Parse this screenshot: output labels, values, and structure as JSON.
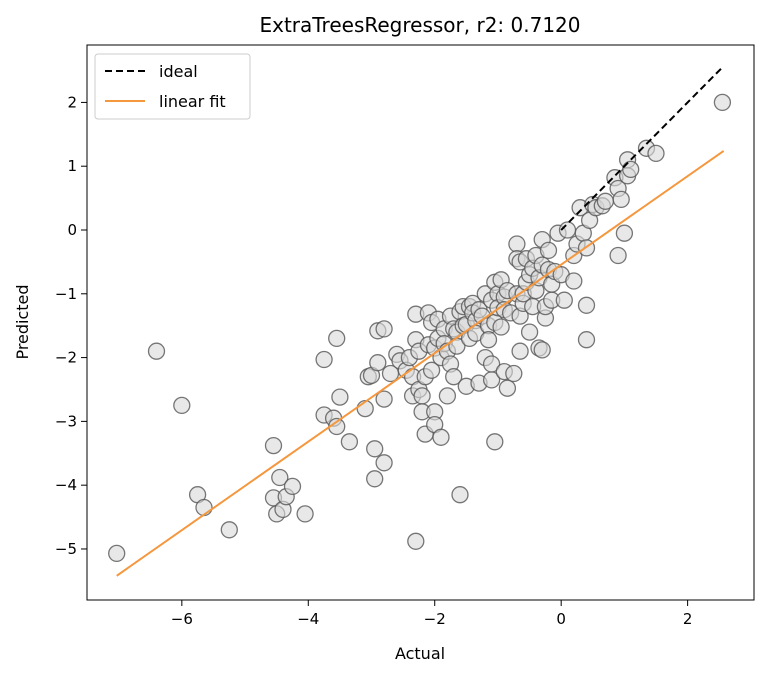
{
  "chart_data": {
    "type": "scatter",
    "title": "ExtraTreesRegressor, r2: 0.7120",
    "xlabel": "Actual",
    "ylabel": "Predicted",
    "xlim": [
      -7.5,
      3.05
    ],
    "ylim": [
      -5.8,
      2.9
    ],
    "xticks": [
      -6,
      -4,
      -2,
      0,
      2
    ],
    "yticks": [
      -5,
      -4,
      -3,
      -2,
      -1,
      0,
      1,
      2
    ],
    "grid": false,
    "legend_position": "top-left",
    "colors": {
      "points_fill": "#d9d9d9",
      "points_stroke": "#555555",
      "ideal": "#000000",
      "fit": "#f5973d"
    },
    "series": [
      {
        "name": "ideal",
        "kind": "line",
        "style": "dashed",
        "x": [
          0.0,
          2.55
        ],
        "y": [
          0.0,
          2.55
        ]
      },
      {
        "name": "linear fit",
        "kind": "line",
        "style": "solid",
        "x": [
          -7.03,
          2.57
        ],
        "y": [
          -5.42,
          1.24
        ]
      },
      {
        "kind": "scatter",
        "points": [
          [
            -7.03,
            -5.07
          ],
          [
            -6.4,
            -1.9
          ],
          [
            -6.0,
            -2.75
          ],
          [
            -5.75,
            -4.15
          ],
          [
            -5.65,
            -4.35
          ],
          [
            -5.25,
            -4.7
          ],
          [
            -4.55,
            -3.38
          ],
          [
            -4.55,
            -4.2
          ],
          [
            -4.5,
            -4.45
          ],
          [
            -4.45,
            -3.88
          ],
          [
            -4.4,
            -4.38
          ],
          [
            -4.35,
            -4.18
          ],
          [
            -4.25,
            -4.02
          ],
          [
            -4.05,
            -4.45
          ],
          [
            -3.75,
            -2.9
          ],
          [
            -3.75,
            -2.03
          ],
          [
            -3.6,
            -2.95
          ],
          [
            -3.55,
            -3.08
          ],
          [
            -3.55,
            -1.7
          ],
          [
            -3.5,
            -2.62
          ],
          [
            -3.35,
            -3.32
          ],
          [
            -3.1,
            -2.8
          ],
          [
            -3.05,
            -2.3
          ],
          [
            -3.0,
            -2.28
          ],
          [
            -2.95,
            -3.43
          ],
          [
            -2.95,
            -3.9
          ],
          [
            -2.9,
            -2.08
          ],
          [
            -2.9,
            -1.58
          ],
          [
            -2.8,
            -1.55
          ],
          [
            -2.8,
            -2.65
          ],
          [
            -2.8,
            -3.65
          ],
          [
            -2.7,
            -2.25
          ],
          [
            -2.6,
            -1.95
          ],
          [
            -2.55,
            -2.05
          ],
          [
            -2.45,
            -2.2
          ],
          [
            -2.4,
            -2.0
          ],
          [
            -2.35,
            -2.3
          ],
          [
            -2.35,
            -2.6
          ],
          [
            -2.3,
            -1.32
          ],
          [
            -2.3,
            -1.72
          ],
          [
            -2.3,
            -4.88
          ],
          [
            -2.25,
            -2.5
          ],
          [
            -2.25,
            -1.9
          ],
          [
            -2.2,
            -2.85
          ],
          [
            -2.2,
            -2.6
          ],
          [
            -2.15,
            -3.2
          ],
          [
            -2.15,
            -2.3
          ],
          [
            -2.1,
            -1.8
          ],
          [
            -2.1,
            -1.3
          ],
          [
            -2.05,
            -1.45
          ],
          [
            -2.05,
            -2.2
          ],
          [
            -2.0,
            -1.85
          ],
          [
            -2.0,
            -2.85
          ],
          [
            -2.0,
            -3.05
          ],
          [
            -1.95,
            -1.4
          ],
          [
            -1.95,
            -1.7
          ],
          [
            -1.9,
            -2.0
          ],
          [
            -1.9,
            -3.25
          ],
          [
            -1.85,
            -1.55
          ],
          [
            -1.85,
            -1.78
          ],
          [
            -1.8,
            -1.9
          ],
          [
            -1.8,
            -2.6
          ],
          [
            -1.75,
            -1.35
          ],
          [
            -1.75,
            -2.1
          ],
          [
            -1.7,
            -1.55
          ],
          [
            -1.7,
            -2.3
          ],
          [
            -1.65,
            -1.6
          ],
          [
            -1.65,
            -1.82
          ],
          [
            -1.6,
            -1.28
          ],
          [
            -1.6,
            -4.15
          ],
          [
            -1.55,
            -1.2
          ],
          [
            -1.55,
            -1.5
          ],
          [
            -1.5,
            -1.48
          ],
          [
            -1.5,
            -2.45
          ],
          [
            -1.45,
            -1.2
          ],
          [
            -1.45,
            -1.7
          ],
          [
            -1.4,
            -1.15
          ],
          [
            -1.4,
            -1.3
          ],
          [
            -1.35,
            -1.42
          ],
          [
            -1.35,
            -1.62
          ],
          [
            -1.3,
            -2.4
          ],
          [
            -1.3,
            -1.25
          ],
          [
            -1.25,
            -1.35
          ],
          [
            -1.2,
            -1.0
          ],
          [
            -1.2,
            -2.0
          ],
          [
            -1.15,
            -1.5
          ],
          [
            -1.15,
            -1.72
          ],
          [
            -1.1,
            -1.1
          ],
          [
            -1.1,
            -2.35
          ],
          [
            -1.1,
            -2.1
          ],
          [
            -1.05,
            -0.82
          ],
          [
            -1.05,
            -1.45
          ],
          [
            -1.05,
            -3.32
          ],
          [
            -1.0,
            -1.0
          ],
          [
            -1.0,
            -1.22
          ],
          [
            -0.95,
            -0.78
          ],
          [
            -0.95,
            -1.52
          ],
          [
            -0.9,
            -1.05
          ],
          [
            -0.9,
            -1.25
          ],
          [
            -0.9,
            -2.22
          ],
          [
            -0.85,
            -2.48
          ],
          [
            -0.85,
            -0.95
          ],
          [
            -0.8,
            -1.3
          ],
          [
            -0.75,
            -2.25
          ],
          [
            -0.7,
            -0.22
          ],
          [
            -0.7,
            -0.45
          ],
          [
            -0.7,
            -1.0
          ],
          [
            -0.65,
            -1.35
          ],
          [
            -0.65,
            -1.9
          ],
          [
            -0.65,
            -0.5
          ],
          [
            -0.6,
            -1.15
          ],
          [
            -0.6,
            -1.0
          ],
          [
            -0.55,
            -0.82
          ],
          [
            -0.55,
            -0.45
          ],
          [
            -0.5,
            -1.6
          ],
          [
            -0.5,
            -0.7
          ],
          [
            -0.45,
            -1.2
          ],
          [
            -0.45,
            -0.6
          ],
          [
            -0.4,
            -0.95
          ],
          [
            -0.4,
            -0.4
          ],
          [
            -0.35,
            -1.85
          ],
          [
            -0.35,
            -0.75
          ],
          [
            -0.3,
            -0.15
          ],
          [
            -0.3,
            -0.55
          ],
          [
            -0.3,
            -1.88
          ],
          [
            -0.25,
            -1.38
          ],
          [
            -0.25,
            -1.2
          ],
          [
            -0.2,
            -0.62
          ],
          [
            -0.2,
            -0.32
          ],
          [
            -0.15,
            -0.85
          ],
          [
            -0.15,
            -1.1
          ],
          [
            -0.1,
            -0.65
          ],
          [
            -0.05,
            -0.05
          ],
          [
            0.0,
            -0.7
          ],
          [
            0.05,
            -1.1
          ],
          [
            0.1,
            0.0
          ],
          [
            0.2,
            -0.4
          ],
          [
            0.2,
            -0.8
          ],
          [
            0.25,
            -0.22
          ],
          [
            0.3,
            0.35
          ],
          [
            0.35,
            -0.05
          ],
          [
            0.4,
            -0.28
          ],
          [
            0.4,
            -1.18
          ],
          [
            0.4,
            -1.72
          ],
          [
            0.45,
            0.15
          ],
          [
            0.5,
            0.4
          ],
          [
            0.55,
            0.35
          ],
          [
            0.65,
            0.38
          ],
          [
            0.7,
            0.45
          ],
          [
            0.85,
            0.82
          ],
          [
            0.9,
            0.65
          ],
          [
            0.9,
            -0.4
          ],
          [
            0.95,
            0.48
          ],
          [
            1.0,
            -0.05
          ],
          [
            1.05,
            0.85
          ],
          [
            1.05,
            1.1
          ],
          [
            1.1,
            0.95
          ],
          [
            1.35,
            1.28
          ],
          [
            1.5,
            1.2
          ],
          [
            2.55,
            2.0
          ]
        ]
      }
    ]
  }
}
